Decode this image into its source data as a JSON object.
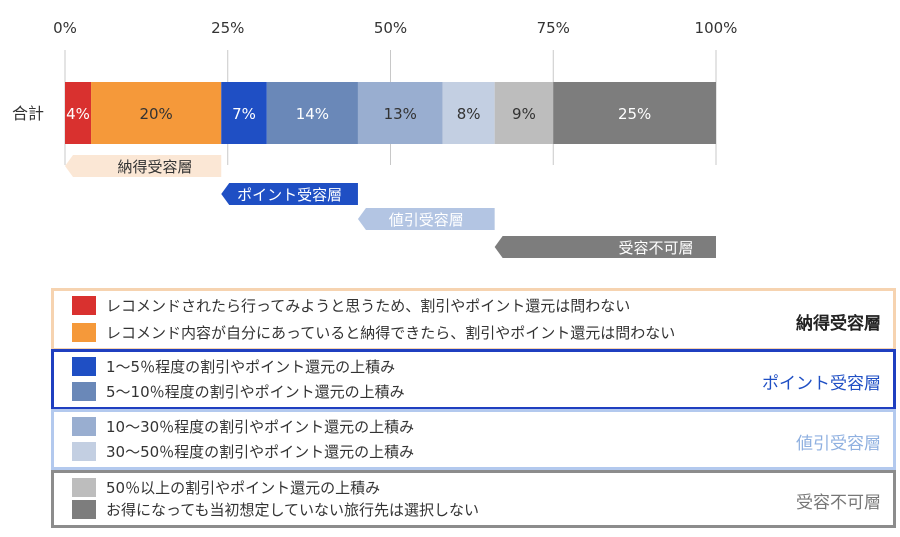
{
  "chart_data": {
    "type": "bar",
    "orientation": "horizontal",
    "stacked": true,
    "categories": [
      "合計"
    ],
    "xlim": [
      0,
      100
    ],
    "x_ticks": [
      "0%",
      "25%",
      "50%",
      "75%",
      "100%"
    ],
    "grid": true,
    "series": [
      {
        "name": "レコメンドされたら行ってみようと思うため、割引やポイント還元は問わない",
        "value": 4,
        "label": "4%",
        "color": "#d9312f",
        "label_color": "#ffffff"
      },
      {
        "name": "レコメンド内容が自分にあっていると納得できたら、割引やポイント還元は問わない",
        "value": 20,
        "label": "20%",
        "color": "#f5993a",
        "label_color": "#333333"
      },
      {
        "name": "1〜5％程度の割引やポイント還元の上積み",
        "value": 7,
        "label": "7%",
        "color": "#1f4fc4",
        "label_color": "#ffffff"
      },
      {
        "name": "5〜10％程度の割引やポイント還元の上積み",
        "value": 14,
        "label": "14%",
        "color": "#6a88b8",
        "label_color": "#ffffff"
      },
      {
        "name": "10〜30％程度の割引やポイント還元の上積み",
        "value": 13,
        "label": "13%",
        "color": "#99aed0",
        "label_color": "#333333"
      },
      {
        "name": "30〜50％程度の割引やポイント還元の上積み",
        "value": 8,
        "label": "8%",
        "color": "#c3cfe2",
        "label_color": "#333333"
      },
      {
        "name": "50％以上の割引やポイント還元の上積み",
        "value": 9,
        "label": "9%",
        "color": "#bdbdbd",
        "label_color": "#333333"
      },
      {
        "name": "お得になっても当初想定していない旅行先は選択しない",
        "value": 25,
        "label": "25%",
        "color": "#7d7d7d",
        "label_color": "#ffffff"
      }
    ],
    "brackets": [
      {
        "label": "納得受容層",
        "from": 0,
        "to": 24,
        "color": "#fbe7d5",
        "text_color": "#333333"
      },
      {
        "label": "ポイント受容層",
        "from": 24,
        "to": 45,
        "color": "#1f4fc4",
        "text_color": "#ffffff"
      },
      {
        "label": "値引受容層",
        "from": 45,
        "to": 66,
        "color": "#b3c5e3",
        "text_color": "#ffffff"
      },
      {
        "label": "受容不可層",
        "from": 66,
        "to": 100,
        "color": "#7d7d7d",
        "text_color": "#ffffff"
      }
    ]
  },
  "legend": {
    "groups": [
      {
        "title": "納得受容層",
        "title_color": "#222222",
        "border_color": "#f6d3b0",
        "items": [
          {
            "label": "レコメンドされたら行ってみようと思うため、割引やポイント還元は問わない",
            "color": "#d9312f"
          },
          {
            "label": "レコメンド内容が自分にあっていると納得できたら、割引やポイント還元は問わない",
            "color": "#f5993a"
          }
        ]
      },
      {
        "title": "ポイント受容層",
        "title_color": "#1f4fc4",
        "border_color": "#1f3fc0",
        "items": [
          {
            "label": "1〜5％程度の割引やポイント還元の上積み",
            "color": "#1f4fc4"
          },
          {
            "label": "5〜10％程度の割引やポイント還元の上積み",
            "color": "#6a88b8"
          }
        ]
      },
      {
        "title": "値引受容層",
        "title_color": "#8fb0e0",
        "border_color": "#b3c9ee",
        "items": [
          {
            "label": "10〜30％程度の割引やポイント還元の上積み",
            "color": "#99aed0"
          },
          {
            "label": "30〜50％程度の割引やポイント還元の上積み",
            "color": "#c3cfe2"
          }
        ]
      },
      {
        "title": "受容不可層",
        "title_color": "#777777",
        "border_color": "#8c8c8c",
        "items": [
          {
            "label": "50％以上の割引やポイント還元の上積み",
            "color": "#bdbdbd"
          },
          {
            "label": "お得になっても当初想定していない旅行先は選択しない",
            "color": "#7d7d7d"
          }
        ]
      }
    ]
  }
}
